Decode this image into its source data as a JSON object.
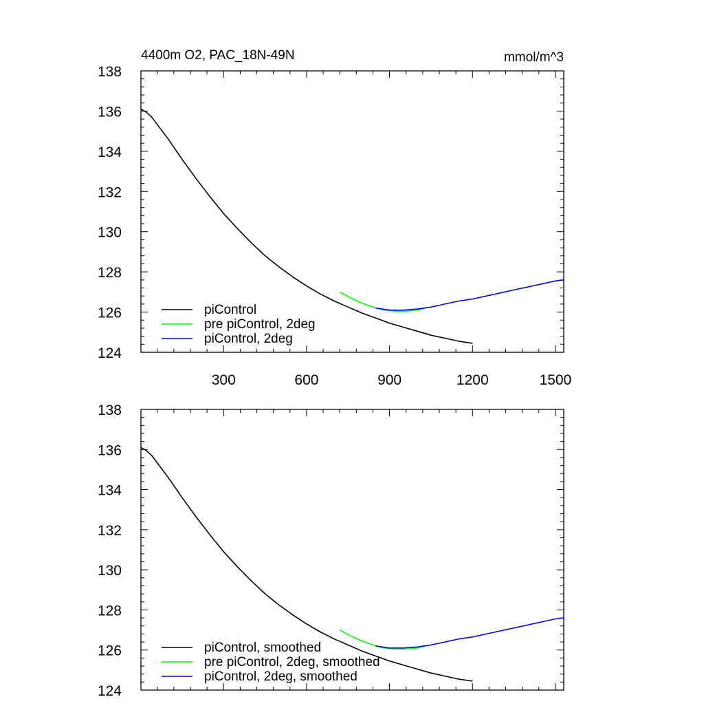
{
  "chart_data": [
    {
      "type": "line",
      "title": "4400m O2, PAC_18N-49N",
      "units": "mmol/m^3",
      "xlim": [
        1,
        1530
      ],
      "ylim": [
        124,
        138
      ],
      "xticks": [
        300,
        600,
        900,
        1200,
        1500
      ],
      "yticks": [
        124,
        126,
        128,
        130,
        132,
        134,
        136,
        138
      ],
      "show_x_tick_labels": true,
      "grid": false,
      "legend_position": "bottom-left",
      "series": [
        {
          "name": "piControl",
          "color": "#000000",
          "x": [
            1,
            20,
            40,
            70,
            100,
            150,
            200,
            250,
            300,
            350,
            400,
            450,
            500,
            550,
            600,
            650,
            700,
            750,
            800,
            850,
            900,
            950,
            1000,
            1050,
            1100,
            1150,
            1200
          ],
          "y": [
            136.1,
            135.95,
            135.7,
            135.15,
            134.6,
            133.6,
            132.65,
            131.75,
            130.9,
            130.15,
            129.45,
            128.8,
            128.25,
            127.75,
            127.3,
            126.9,
            126.55,
            126.25,
            125.95,
            125.7,
            125.45,
            125.25,
            125.05,
            124.85,
            124.7,
            124.55,
            124.45
          ]
        },
        {
          "name": "pre piControl, 2deg",
          "color": "#00ff00",
          "x": [
            720,
            760,
            800,
            840,
            880,
            920,
            960,
            1000,
            1030
          ],
          "y": [
            127.0,
            126.7,
            126.45,
            126.25,
            126.1,
            126.05,
            126.05,
            126.1,
            126.2
          ]
        },
        {
          "name": "piControl, 2deg",
          "color": "#0000ff",
          "x": [
            850,
            900,
            950,
            1000,
            1050,
            1100,
            1150,
            1200,
            1250,
            1300,
            1350,
            1400,
            1450,
            1500,
            1530
          ],
          "y": [
            126.2,
            126.1,
            126.1,
            126.15,
            126.25,
            126.4,
            126.55,
            126.65,
            126.8,
            126.95,
            127.1,
            127.25,
            127.4,
            127.55,
            127.6
          ]
        }
      ]
    },
    {
      "type": "line",
      "title": "",
      "units": "",
      "xlim": [
        1,
        1530
      ],
      "ylim": [
        124,
        138
      ],
      "xticks": [
        300,
        600,
        900,
        1200,
        1500
      ],
      "yticks": [
        124,
        126,
        128,
        130,
        132,
        134,
        136,
        138
      ],
      "show_x_tick_labels": false,
      "grid": false,
      "legend_position": "bottom-left",
      "series": [
        {
          "name": "piControl, smoothed",
          "color": "#000000",
          "x": [
            1,
            20,
            40,
            70,
            100,
            150,
            200,
            250,
            300,
            350,
            400,
            450,
            500,
            550,
            600,
            650,
            700,
            750,
            800,
            850,
            900,
            950,
            1000,
            1050,
            1100,
            1150,
            1200
          ],
          "y": [
            136.1,
            135.95,
            135.7,
            135.15,
            134.6,
            133.6,
            132.65,
            131.75,
            130.9,
            130.15,
            129.45,
            128.8,
            128.25,
            127.75,
            127.3,
            126.9,
            126.55,
            126.25,
            125.95,
            125.7,
            125.45,
            125.25,
            125.05,
            124.85,
            124.7,
            124.55,
            124.45
          ]
        },
        {
          "name": "pre piControl, 2deg, smoothed",
          "color": "#00ff00",
          "x": [
            720,
            760,
            800,
            840,
            880,
            920,
            960,
            1000,
            1030
          ],
          "y": [
            127.0,
            126.7,
            126.45,
            126.25,
            126.1,
            126.05,
            126.05,
            126.1,
            126.2
          ]
        },
        {
          "name": "piControl, 2deg, smoothed",
          "color": "#0000ff",
          "x": [
            850,
            900,
            950,
            1000,
            1050,
            1100,
            1150,
            1200,
            1250,
            1300,
            1350,
            1400,
            1450,
            1500,
            1530
          ],
          "y": [
            126.2,
            126.1,
            126.1,
            126.15,
            126.25,
            126.4,
            126.55,
            126.65,
            126.8,
            126.95,
            127.1,
            127.25,
            127.4,
            127.55,
            127.6
          ]
        }
      ]
    }
  ]
}
